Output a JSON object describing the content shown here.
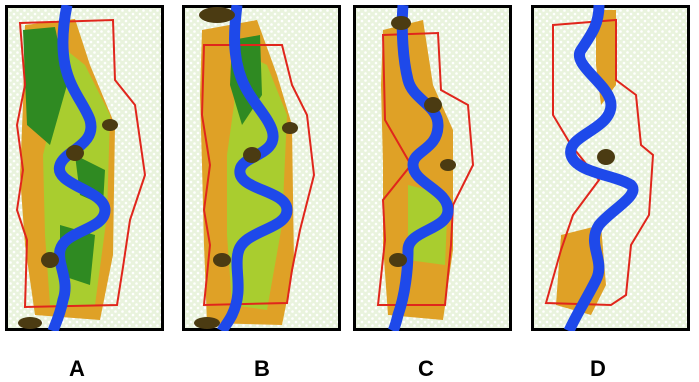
{
  "colors": {
    "background": "#e9f3dd",
    "dots": "#ffffff",
    "frame": "#000000",
    "river": "#1e49ea",
    "corridor_outline": "#e0261c",
    "orange_band": "#dfa126",
    "light_green": "#a9cd2f",
    "dark_green": "#2f8a22",
    "dark_patch": "#4b3b12"
  },
  "panels": [
    {
      "id": "A",
      "label": "A"
    },
    {
      "id": "B",
      "label": "B"
    },
    {
      "id": "C",
      "label": "C"
    },
    {
      "id": "D",
      "label": "D"
    }
  ]
}
